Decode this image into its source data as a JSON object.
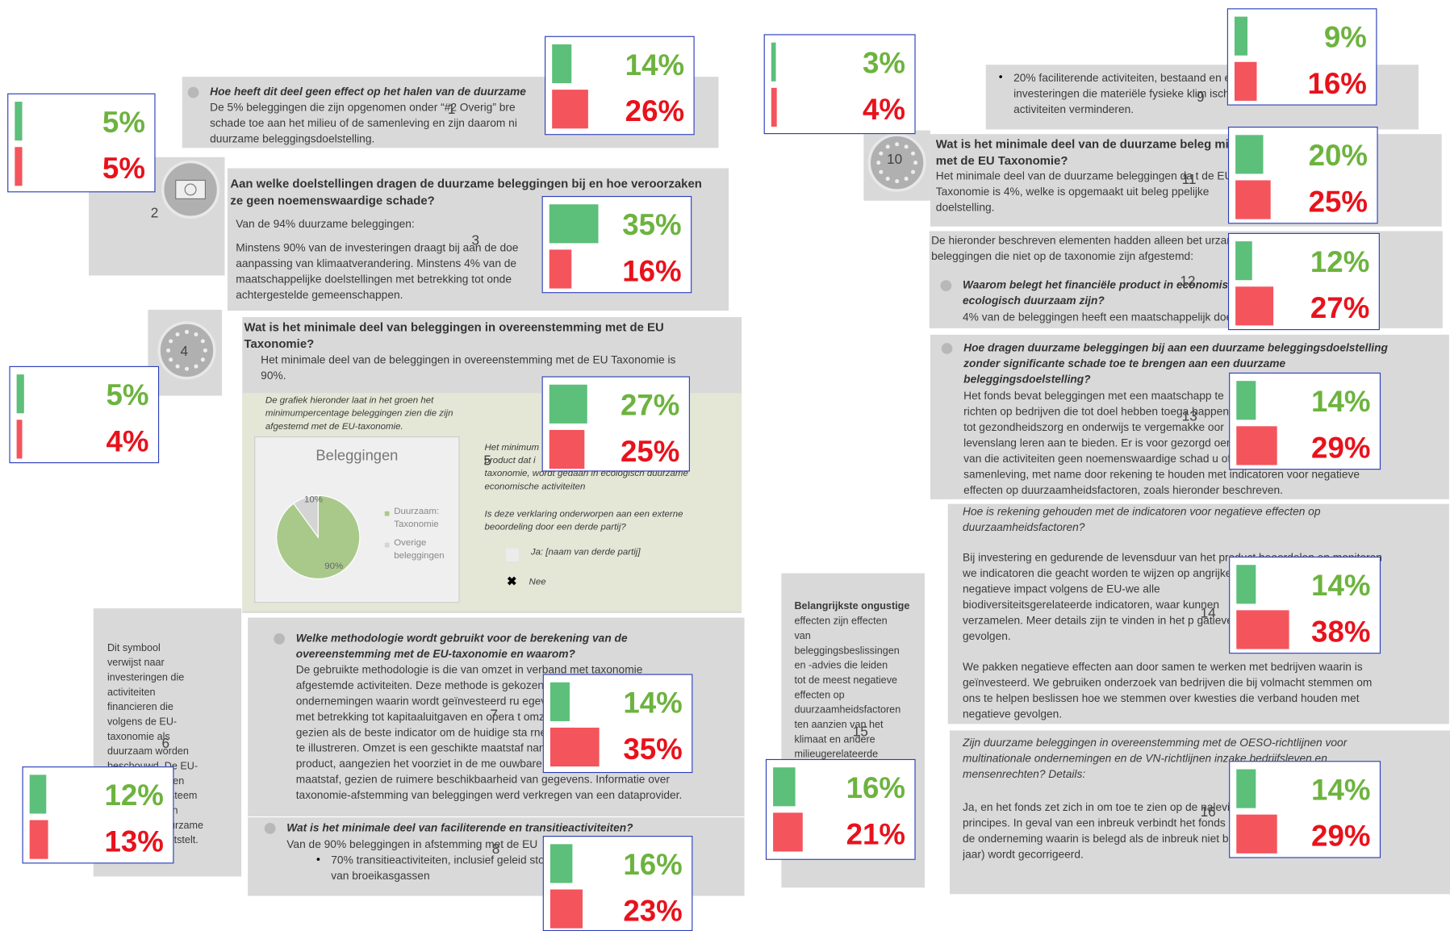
{
  "markers": [
    "1",
    "2",
    "3",
    "4",
    "5",
    "6",
    "7",
    "8",
    "9",
    "10",
    "11",
    "12",
    "13",
    "14",
    "15",
    "16"
  ],
  "segments": [
    {
      "blocks": [
        [
          "Hoe heeft dit deel geen effect op het halen van de duurzame"
        ],
        [
          "De 5% beleggingen die zijn opgenomen onder “#2 Overig” bre",
          "schade toe aan het milieu of de samenleving en zijn daarom ni",
          "duurzame beleggingsdoelstelling."
        ]
      ]
    },
    {
      "blocks": [
        [
          "Aan welke doelstellingen dragen de duurzame beleggingen bij en hoe veroorzaken",
          "ze geen noemenswaardige schade?"
        ],
        [
          "Van de 94% duurzame beleggingen:"
        ],
        [
          "Minstens 90% van de investeringen draagt bij aan de doe",
          "aanpassing van klimaatverandering. Minstens 4% van de",
          "maatschappelijke doelstellingen met betrekking tot onde",
          "achtergestelde gemeenschappen."
        ]
      ]
    },
    {
      "blocks": [
        [
          "Wat is het minimale deel van beleggingen in overeenstemming met de EU",
          "Taxonomie?"
        ],
        [
          "Het minimale deel van de beleggingen in overeenstemming met de EU Taxonomie is",
          "90%."
        ],
        [
          "De grafiek hieronder laat in het groen het",
          "minimumpercentage beleggingen zien die zijn",
          "afgestemd met de EU-taxonomie."
        ],
        [
          "Het minimum                                   nanciële",
          "product dat i",
          "taxonomie, wordt gedaan in ecologisch duurzame",
          "economische activiteiten"
        ],
        [
          "Is deze verklaring onderworpen aan een externe",
          "beoordeling door een derde partij?"
        ],
        [
          "Ja: [naam van derde partij]"
        ],
        [
          "Nee"
        ]
      ]
    },
    {
      "blocks": [
        [
          "Dit symbool",
          "verwijst naar",
          "investeringen die",
          "activiteiten",
          "financieren die",
          "volgens de EU-",
          "taxonomie als",
          "duurzaam worden",
          "beschouwd. De EU-",
          "taxonomie is een",
          "classificatiesysteem",
          "dat een lijst van",
          "ecologisch duurzame",
          "activiteiten vaststelt."
        ]
      ]
    },
    {
      "blocks": [
        [
          "Welke methodologie wordt gebruikt voor de berekening van de",
          "overeenstemming met de EU-taxonomie en waarom?"
        ],
        [
          "De gebruikte methodologie is die van omzet in verband met taxonomie",
          "afgestemde activiteiten. Deze methode is gekozen                          voor de",
          "ondernemingen waarin wordt geïnvesteerd ru                         egevens",
          "met betrekking tot kapitaaluitgaven en opera                         t omzet",
          "gezien als de beste indicator om de huidige sta                        rneming",
          "te illustreren. Omzet is een geschikte maatstaf                        nanciële",
          "product, aangezien het voorziet in de me                        ouwbare",
          "maatstaf, gezien de ruimere beschikbaarheid van gegevens. Informatie over",
          "taxonomie-afstemming van beleggingen werd verkregen van een dataprovider."
        ]
      ]
    },
    {
      "blocks": [
        [
          "Wat is het minimale deel van faciliterende en transitieactiviteiten?"
        ],
        [
          "Van de 90% beleggingen in afstemming met de EU"
        ],
        [
          "70% transitieactiviteiten, inclusief geleid                         stoot",
          "van broeikasgassen"
        ]
      ]
    },
    {
      "blocks": [
        [
          "20% faciliterende activiteiten, bestaand                          en en",
          "investeringen die materiële fysieke klim                          ische",
          "activiteiten verminderen."
        ]
      ]
    },
    {
      "blocks": [
        [
          "Wat is het minimale deel van de duurzame beleg                           ming is",
          "met de EU Taxonomie?"
        ],
        [
          "Het minimale deel van de duurzame beleggingen da                          t de EU",
          "Taxonomie is 4%, welke is opgemaakt uit beleg                          ppelijke",
          "doelstelling."
        ]
      ]
    },
    {
      "blocks": [
        [
          "De hieronder beschreven elementen hadden alleen bet                          urzame",
          "beleggingen die niet op de taxonomie zijn afgestemd:"
        ],
        [
          "Waarom belegt het financiële product in economische activiteiten die niet",
          "ecologisch duurzaam zijn?"
        ],
        [
          "4% van de beleggingen heeft een maatschappelijk doel."
        ]
      ]
    },
    {
      "blocks": [
        [
          "Hoe dragen duurzame beleggingen bij aan een duurzame beleggingsdoelstelling",
          "zonder significante schade toe te brengen aan een duurzame",
          "beleggingsdoelstelling?"
        ],
        [
          "Het fonds bevat beleggingen met een maatschapp                          te",
          "richten op bedrijven die tot doel hebben toega                          happen",
          "tot gezondheidszorg en onderwijs te vergemakke                          oor",
          "levenslang leren aan te bieden. Er is voor gezorgd                          oeren",
          "van die activiteiten geen noemenswaardige schad                          u of de",
          "samenleving, met name door rekening te houden met indicatoren voor negatieve",
          "effecten op duurzaamheidsfactoren, zoals hieronder beschreven."
        ]
      ]
    },
    {
      "blocks": [
        [
          "Hoe is rekening gehouden met de indicatoren voor negatieve effecten op",
          "duurzaamheidsfactoren?"
        ],
        [
          "Bij investering en gedurende de levensduur van het product beoordelen en monitoren",
          "we indicatoren die geacht worden te wijzen op                           angrijke",
          "negatieve    impact    volgens    de    EU-we                           alle",
          "biodiversiteitsgerelateerde   indicatoren,   waar                           kunnen",
          "verzamelen. Meer details zijn te vinden in het p                          gatieve",
          "gevolgen."
        ],
        [
          "We pakken negatieve effecten aan door samen te werken met bedrijven waarin is",
          "geïnvesteerd. We gebruiken onderzoek van bedrijven die bij volmacht stemmen om",
          "ons te helpen beslissen hoe we stemmen over kwesties die verband houden met",
          "negatieve gevolgen."
        ]
      ]
    },
    {
      "blocks": [
        [
          "Belangrijkste ongustige"
        ],
        [
          "effecten zijn effecten",
          "van",
          "beleggingsbeslissingen",
          "en -advies die leiden",
          "tot de meest negatieve",
          "effecten op",
          "duurzaamheidsfactoren",
          "ten aanzien van het",
          "klimaat en andere",
          "milieugerelateerde"
        ]
      ]
    },
    {
      "blocks": [
        [
          "Zijn duurzame beleggingen in overeenstemming met de OESO-richtlijnen voor",
          "multinationale ondernemingen en de VN-richtlijnen inzake bedrijfsleven en",
          "mensenrechten? Details:"
        ],
        [
          "Ja, en het fonds zet zich in om toe te zien op de naleving van deze richtlijnen en",
          "principes. In geval van een inbreuk verbindt het fonds zich ertoe om te reageren in",
          "de onderneming waarin is belegd als de inbreuk niet binnen een redelijke termijn (1",
          "jaar) wordt gecorrigeerd."
        ]
      ]
    }
  ],
  "chart": {
    "title": "Beleggingen",
    "categories": [
      "Duurzaam: Taxonomie",
      "Overige beleggingen"
    ],
    "values": [
      90,
      10
    ],
    "value_labels": [
      "90%",
      "10%"
    ]
  },
  "overlays": [
    {
      "green": 14,
      "green_label": "14%",
      "red": 26,
      "red_label": "26%"
    },
    {
      "green": 5,
      "green_label": "5%",
      "red": 5,
      "red_label": "5%"
    },
    {
      "green": 35,
      "green_label": "35%",
      "red": 16,
      "red_label": "16%"
    },
    {
      "green": 5,
      "green_label": "5%",
      "red": 4,
      "red_label": "4%"
    },
    {
      "green": 27,
      "green_label": "27%",
      "red": 25,
      "red_label": "25%"
    },
    {
      "green": 12,
      "green_label": "12%",
      "red": 13,
      "red_label": "13%"
    },
    {
      "green": 14,
      "green_label": "14%",
      "red": 35,
      "red_label": "35%"
    },
    {
      "green": 16,
      "green_label": "16%",
      "red": 23,
      "red_label": "23%"
    },
    {
      "green": 3,
      "green_label": "3%",
      "red": 4,
      "red_label": "4%"
    },
    {
      "green": 9,
      "green_label": "9%",
      "red": 16,
      "red_label": "16%"
    },
    {
      "green": 20,
      "green_label": "20%",
      "red": 25,
      "red_label": "25%"
    },
    {
      "green": 12,
      "green_label": "12%",
      "red": 27,
      "red_label": "27%"
    },
    {
      "green": 14,
      "green_label": "14%",
      "red": 29,
      "red_label": "29%"
    },
    {
      "green": 14,
      "green_label": "14%",
      "red": 38,
      "red_label": "38%"
    },
    {
      "green": 16,
      "green_label": "16%",
      "red": 21,
      "red_label": "21%"
    },
    {
      "green": 14,
      "green_label": "14%",
      "red": 29,
      "red_label": "29%"
    }
  ]
}
